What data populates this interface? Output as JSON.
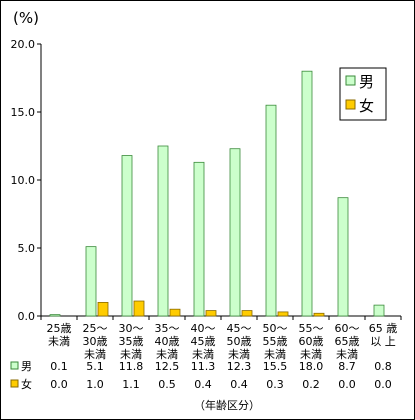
{
  "chart_data": {
    "type": "bar",
    "unit_label": "(%)",
    "ylim": [
      0,
      20
    ],
    "yticks": [
      "0.0",
      "5.0",
      "10.0",
      "15.0",
      "20.0"
    ],
    "categories": [
      [
        "25歳",
        "未満"
      ],
      [
        "25～",
        "30歳",
        "未満"
      ],
      [
        "30～",
        "35歳",
        "未満"
      ],
      [
        "35～",
        "40歳",
        "未満"
      ],
      [
        "40～",
        "45歳",
        "未満"
      ],
      [
        "45～",
        "50歳",
        "未満"
      ],
      [
        "50～",
        "55歳",
        "未満"
      ],
      [
        "55～",
        "60歳",
        "未満"
      ],
      [
        "60～",
        "65歳",
        "未満"
      ],
      [
        "65 歳",
        "以 上"
      ]
    ],
    "series": [
      {
        "name": "男",
        "color": "#ccffcc",
        "stroke": "#3a8a3a",
        "values": [
          0.1,
          5.1,
          11.8,
          12.5,
          11.3,
          12.3,
          15.5,
          18.0,
          8.7,
          0.8
        ],
        "labels": [
          "0.1",
          "5.1",
          "11.8",
          "12.5",
          "11.3",
          "12.3",
          "15.5",
          "18.0",
          "8.7",
          "0.8"
        ]
      },
      {
        "name": "女",
        "color": "#ffcc00",
        "stroke": "#8a6a00",
        "values": [
          0.0,
          1.0,
          1.1,
          0.5,
          0.4,
          0.4,
          0.3,
          0.2,
          0.0,
          0.0
        ],
        "labels": [
          "0.0",
          "1.0",
          "1.1",
          "0.5",
          "0.4",
          "0.4",
          "0.3",
          "0.2",
          "0.0",
          "0.0"
        ]
      }
    ],
    "xlabel": "（年齢区分）",
    "grid": false,
    "legend_position": "right"
  }
}
